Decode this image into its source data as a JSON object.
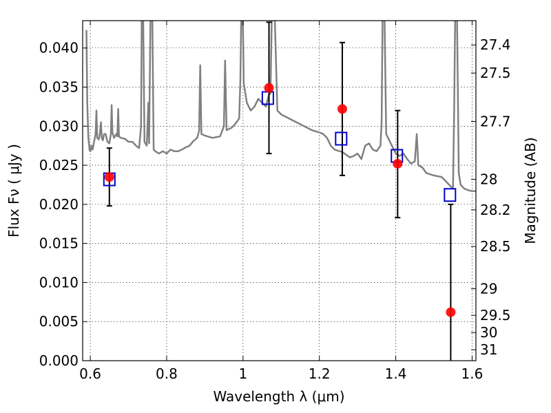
{
  "chart_data": {
    "type": "scatter",
    "title": "",
    "xlabel": "Wavelength  λ (μm)",
    "ylabel": "Flux  Fν  ( μJy )",
    "y2label": "Magnitude (AB)",
    "xlim": [
      0.58,
      1.61
    ],
    "ylim": [
      0.0,
      0.0435
    ],
    "grid": true,
    "legend": "none",
    "x_ticks": [
      {
        "value": 0.6,
        "label": "0.6"
      },
      {
        "value": 0.8,
        "label": "0.8"
      },
      {
        "value": 1.0,
        "label": "1"
      },
      {
        "value": 1.2,
        "label": "1.2"
      },
      {
        "value": 1.4,
        "label": "1.4"
      },
      {
        "value": 1.6,
        "label": "1.6"
      }
    ],
    "y_ticks": [
      {
        "value": 0.0,
        "label": "0.000"
      },
      {
        "value": 0.005,
        "label": "0.005"
      },
      {
        "value": 0.01,
        "label": "0.010"
      },
      {
        "value": 0.015,
        "label": "0.015"
      },
      {
        "value": 0.02,
        "label": "0.020"
      },
      {
        "value": 0.025,
        "label": "0.025"
      },
      {
        "value": 0.03,
        "label": "0.030"
      },
      {
        "value": 0.035,
        "label": "0.035"
      },
      {
        "value": 0.04,
        "label": "0.040"
      }
    ],
    "y2_ticks": [
      {
        "flux": 0.0404,
        "label": "27.4"
      },
      {
        "flux": 0.0368,
        "label": "27.5"
      },
      {
        "flux": 0.0306,
        "label": "27.7"
      },
      {
        "flux": 0.0232,
        "label": "28"
      },
      {
        "flux": 0.0193,
        "label": "28.2"
      },
      {
        "flux": 0.0146,
        "label": "28.5"
      },
      {
        "flux": 0.0092,
        "label": "29"
      },
      {
        "flux": 0.0058,
        "label": "29.5"
      },
      {
        "flux": 0.0036,
        "label": "30"
      },
      {
        "flux": 0.0014,
        "label": "31"
      }
    ],
    "series": [
      {
        "kind": "spectrum",
        "color": "#808080",
        "points": [
          [
            0.59,
            0.0423
          ],
          [
            0.592,
            0.033
          ],
          [
            0.595,
            0.0285
          ],
          [
            0.598,
            0.027
          ],
          [
            0.6,
            0.0268
          ],
          [
            0.603,
            0.0275
          ],
          [
            0.606,
            0.027
          ],
          [
            0.61,
            0.028
          ],
          [
            0.614,
            0.029
          ],
          [
            0.616,
            0.032
          ],
          [
            0.618,
            0.0285
          ],
          [
            0.622,
            0.0283
          ],
          [
            0.625,
            0.029
          ],
          [
            0.628,
            0.0305
          ],
          [
            0.63,
            0.0285
          ],
          [
            0.633,
            0.0282
          ],
          [
            0.636,
            0.029
          ],
          [
            0.64,
            0.029
          ],
          [
            0.645,
            0.028
          ],
          [
            0.65,
            0.0278
          ],
          [
            0.654,
            0.029
          ],
          [
            0.656,
            0.0327
          ],
          [
            0.658,
            0.0292
          ],
          [
            0.662,
            0.0285
          ],
          [
            0.668,
            0.029
          ],
          [
            0.671,
            0.0287
          ],
          [
            0.673,
            0.0322
          ],
          [
            0.675,
            0.0287
          ],
          [
            0.68,
            0.0285
          ],
          [
            0.69,
            0.0284
          ],
          [
            0.7,
            0.028
          ],
          [
            0.71,
            0.028
          ],
          [
            0.72,
            0.0275
          ],
          [
            0.728,
            0.0272
          ],
          [
            0.733,
            0.03
          ],
          [
            0.735,
            0.046
          ],
          [
            0.738,
            0.046
          ],
          [
            0.742,
            0.028
          ],
          [
            0.748,
            0.0275
          ],
          [
            0.752,
            0.033
          ],
          [
            0.754,
            0.0278
          ],
          [
            0.758,
            0.046
          ],
          [
            0.762,
            0.046
          ],
          [
            0.766,
            0.027
          ],
          [
            0.77,
            0.0268
          ],
          [
            0.78,
            0.0265
          ],
          [
            0.79,
            0.0268
          ],
          [
            0.8,
            0.0265
          ],
          [
            0.81,
            0.027
          ],
          [
            0.82,
            0.0268
          ],
          [
            0.83,
            0.0268
          ],
          [
            0.84,
            0.027
          ],
          [
            0.85,
            0.0273
          ],
          [
            0.86,
            0.0275
          ],
          [
            0.87,
            0.0281
          ],
          [
            0.88,
            0.0285
          ],
          [
            0.885,
            0.0294
          ],
          [
            0.888,
            0.0378
          ],
          [
            0.891,
            0.029
          ],
          [
            0.9,
            0.0288
          ],
          [
            0.92,
            0.0285
          ],
          [
            0.94,
            0.0287
          ],
          [
            0.95,
            0.03
          ],
          [
            0.953,
            0.0384
          ],
          [
            0.957,
            0.0295
          ],
          [
            0.97,
            0.0298
          ],
          [
            0.98,
            0.0303
          ],
          [
            0.99,
            0.031
          ],
          [
            0.993,
            0.036
          ],
          [
            0.996,
            0.046
          ],
          [
            0.999,
            0.046
          ],
          [
            1.002,
            0.0355
          ],
          [
            1.01,
            0.033
          ],
          [
            1.02,
            0.032
          ],
          [
            1.03,
            0.0325
          ],
          [
            1.04,
            0.0335
          ],
          [
            1.05,
            0.033
          ],
          [
            1.06,
            0.0325
          ],
          [
            1.065,
            0.0335
          ],
          [
            1.068,
            0.034
          ],
          [
            1.072,
            0.0342
          ],
          [
            1.076,
            0.046
          ],
          [
            1.082,
            0.046
          ],
          [
            1.09,
            0.032
          ],
          [
            1.1,
            0.0315
          ],
          [
            1.12,
            0.031
          ],
          [
            1.14,
            0.0305
          ],
          [
            1.16,
            0.03
          ],
          [
            1.18,
            0.0295
          ],
          [
            1.2,
            0.0292
          ],
          [
            1.21,
            0.029
          ],
          [
            1.22,
            0.0285
          ],
          [
            1.23,
            0.0275
          ],
          [
            1.24,
            0.027
          ],
          [
            1.26,
            0.0267
          ],
          [
            1.28,
            0.026
          ],
          [
            1.29,
            0.0262
          ],
          [
            1.3,
            0.0265
          ],
          [
            1.31,
            0.0258
          ],
          [
            1.32,
            0.0275
          ],
          [
            1.33,
            0.0278
          ],
          [
            1.34,
            0.027
          ],
          [
            1.35,
            0.0268
          ],
          [
            1.36,
            0.0275
          ],
          [
            1.363,
            0.0305
          ],
          [
            1.366,
            0.046
          ],
          [
            1.37,
            0.046
          ],
          [
            1.375,
            0.029
          ],
          [
            1.39,
            0.0275
          ],
          [
            1.4,
            0.0265
          ],
          [
            1.41,
            0.0262
          ],
          [
            1.42,
            0.0265
          ],
          [
            1.43,
            0.0258
          ],
          [
            1.44,
            0.0252
          ],
          [
            1.45,
            0.0255
          ],
          [
            1.455,
            0.029
          ],
          [
            1.459,
            0.025
          ],
          [
            1.47,
            0.0247
          ],
          [
            1.48,
            0.024
          ],
          [
            1.5,
            0.0237
          ],
          [
            1.52,
            0.0235
          ],
          [
            1.53,
            0.023
          ],
          [
            1.54,
            0.0225
          ],
          [
            1.55,
            0.022
          ],
          [
            1.553,
            0.032
          ],
          [
            1.556,
            0.046
          ],
          [
            1.56,
            0.046
          ],
          [
            1.565,
            0.024
          ],
          [
            1.57,
            0.0225
          ],
          [
            1.58,
            0.022
          ],
          [
            1.59,
            0.0218
          ],
          [
            1.6,
            0.0217
          ],
          [
            1.61,
            0.0217
          ]
        ]
      },
      {
        "kind": "model-squares",
        "color": "#0000cc",
        "points": [
          [
            0.65,
            0.0232
          ],
          [
            1.065,
            0.0336
          ],
          [
            1.257,
            0.0284
          ],
          [
            1.403,
            0.0262
          ],
          [
            1.542,
            0.0212
          ]
        ]
      },
      {
        "kind": "observed-circles",
        "color": "#ff0000",
        "points": [
          {
            "x": 0.65,
            "y": 0.0235,
            "err_lo": 0.0198,
            "err_hi": 0.0272
          },
          {
            "x": 1.068,
            "y": 0.0349,
            "err_lo": 0.0265,
            "err_hi": 0.0433
          },
          {
            "x": 1.26,
            "y": 0.0322,
            "err_lo": 0.0237,
            "err_hi": 0.0407
          },
          {
            "x": 1.405,
            "y": 0.0252,
            "err_lo": 0.0183,
            "err_hi": 0.032
          },
          {
            "x": 1.544,
            "y": 0.0062,
            "err_lo": 0.0,
            "err_hi": 0.02
          }
        ]
      }
    ]
  }
}
